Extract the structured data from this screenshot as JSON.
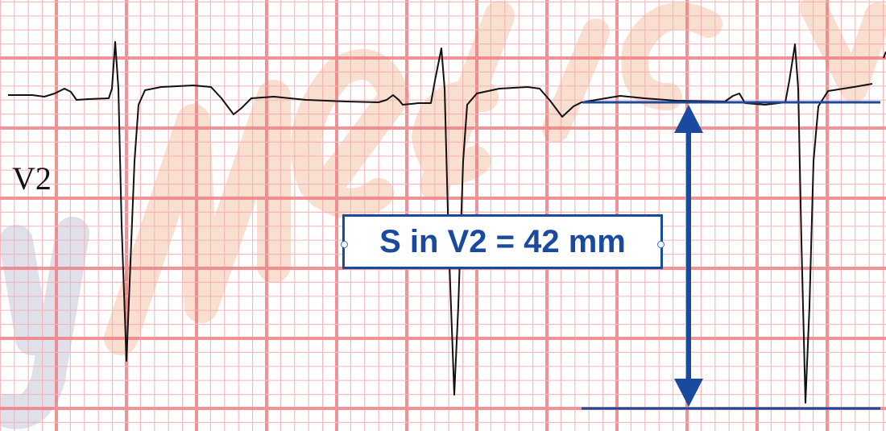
{
  "lead_label": "V2",
  "annotation": {
    "label": "S in V2 = 42 mm",
    "color": "#1a4aa0"
  },
  "watermark": {
    "text": "yMedic",
    "color": "#f7d9c4"
  },
  "grid": {
    "major_color": "#ef7f84",
    "minor_color": "#f6b0b4"
  },
  "trace_color": "#111111"
}
